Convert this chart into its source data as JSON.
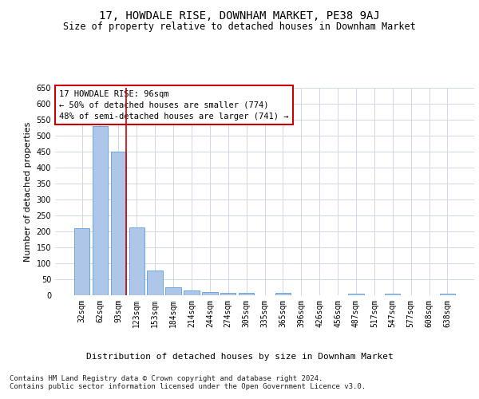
{
  "title": "17, HOWDALE RISE, DOWNHAM MARKET, PE38 9AJ",
  "subtitle": "Size of property relative to detached houses in Downham Market",
  "xlabel": "Distribution of detached houses by size in Downham Market",
  "ylabel": "Number of detached properties",
  "categories": [
    "32sqm",
    "62sqm",
    "93sqm",
    "123sqm",
    "153sqm",
    "184sqm",
    "214sqm",
    "244sqm",
    "274sqm",
    "305sqm",
    "335sqm",
    "365sqm",
    "396sqm",
    "426sqm",
    "456sqm",
    "487sqm",
    "517sqm",
    "547sqm",
    "577sqm",
    "608sqm",
    "638sqm"
  ],
  "values": [
    210,
    530,
    450,
    213,
    78,
    26,
    14,
    10,
    8,
    8,
    0,
    7,
    0,
    0,
    0,
    5,
    0,
    5,
    0,
    0,
    5
  ],
  "bar_color": "#aec6e8",
  "bar_edge_color": "#5a9fd4",
  "vline_x_index": 2,
  "vline_color": "#cc0000",
  "annotation_text": "17 HOWDALE RISE: 96sqm\n← 50% of detached houses are smaller (774)\n48% of semi-detached houses are larger (741) →",
  "annotation_box_color": "#ffffff",
  "annotation_box_edge": "#cc0000",
  "ylim": [
    0,
    650
  ],
  "yticks": [
    0,
    50,
    100,
    150,
    200,
    250,
    300,
    350,
    400,
    450,
    500,
    550,
    600,
    650
  ],
  "footer_text": "Contains HM Land Registry data © Crown copyright and database right 2024.\nContains public sector information licensed under the Open Government Licence v3.0.",
  "bg_color": "#ffffff",
  "grid_color": "#d0d8e8",
  "title_fontsize": 10,
  "subtitle_fontsize": 8.5,
  "axis_label_fontsize": 8,
  "tick_fontsize": 7,
  "annotation_fontsize": 7.5,
  "footer_fontsize": 6.5
}
